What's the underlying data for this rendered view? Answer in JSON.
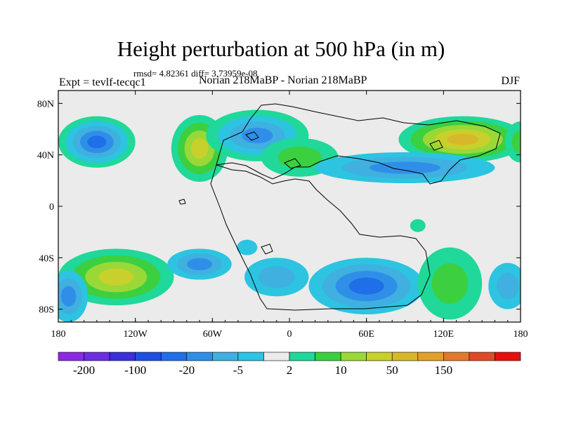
{
  "title": "Height perturbation at 500 hPa (in m)",
  "subtitle": "rmsd= 4.82361 diff= 3.73959e-08",
  "left_label": "Expt = tevlf-tecqc1",
  "center_label": "Norian 218MaBP - Norian 218MaBP",
  "right_label": "DJF",
  "axes": {
    "x_ticks": [
      {
        "value": -180,
        "label": "180"
      },
      {
        "value": -120,
        "label": "120W"
      },
      {
        "value": -60,
        "label": "60W"
      },
      {
        "value": 0,
        "label": "0"
      },
      {
        "value": 60,
        "label": "60E"
      },
      {
        "value": 120,
        "label": "120E"
      },
      {
        "value": 180,
        "label": "180"
      }
    ],
    "y_ticks": [
      {
        "value": 80,
        "label": "80N"
      },
      {
        "value": 40,
        "label": "40N"
      },
      {
        "value": 0,
        "label": "0"
      },
      {
        "value": -40,
        "label": "40S"
      },
      {
        "value": -80,
        "label": "80S"
      }
    ],
    "lon_range": [
      -180,
      180
    ],
    "lat_range": [
      -90,
      90
    ]
  },
  "colorbar": {
    "colors": [
      "#8a2be2",
      "#6a2fe0",
      "#3a2fd8",
      "#1f4fe0",
      "#1f6fe8",
      "#2f8fe8",
      "#3fb0e0",
      "#2cc4e0",
      "#ebebeb",
      "#1fd89a",
      "#3cd040",
      "#9ad838",
      "#c8d02c",
      "#d8b82a",
      "#e0a02a",
      "#e07a2c",
      "#e04a2a",
      "#e61010"
    ],
    "labels": [
      {
        "index": 1,
        "text": "-200"
      },
      {
        "index": 3,
        "text": "-100"
      },
      {
        "index": 5,
        "text": "-20"
      },
      {
        "index": 7,
        "text": "-5"
      },
      {
        "index": 9,
        "text": "2"
      },
      {
        "index": 11,
        "text": "10"
      },
      {
        "index": 13,
        "text": "50"
      },
      {
        "index": 15,
        "text": "150"
      }
    ]
  },
  "field": {
    "background": "#ebebeb",
    "features": [
      {
        "lon": -150,
        "lat": 50,
        "rx": 30,
        "ry": 20,
        "colors": [
          "#1fd89a",
          "#2cc4e0",
          "#3fb0e0",
          "#2f8fe8",
          "#1f6fe8"
        ]
      },
      {
        "lon": -70,
        "lat": 45,
        "rx": 22,
        "ry": 26,
        "colors": [
          "#1fd89a",
          "#3cd040",
          "#9ad838",
          "#c8d02c"
        ]
      },
      {
        "lon": -25,
        "lat": 55,
        "rx": 40,
        "ry": 20,
        "colors": [
          "#1fd89a",
          "#2cc4e0",
          "#3fb0e0",
          "#2f8fe8"
        ]
      },
      {
        "lon": 8,
        "lat": 38,
        "rx": 30,
        "ry": 15,
        "colors": [
          "#1fd89a",
          "#3cd040"
        ]
      },
      {
        "lon": 135,
        "lat": 52,
        "rx": 50,
        "ry": 18,
        "colors": [
          "#1fd89a",
          "#3cd040",
          "#9ad838",
          "#c8d02c",
          "#d8b82a"
        ]
      },
      {
        "lon": 90,
        "lat": 30,
        "rx": 70,
        "ry": 12,
        "colors": [
          "#2cc4e0",
          "#3fb0e0",
          "#2f8fe8"
        ]
      },
      {
        "lon": 180,
        "lat": 50,
        "rx": 12,
        "ry": 16,
        "colors": [
          "#1fd89a",
          "#3cd040"
        ]
      },
      {
        "lon": -135,
        "lat": -55,
        "rx": 45,
        "ry": 22,
        "colors": [
          "#1fd89a",
          "#3cd040",
          "#9ad838",
          "#c8d02c"
        ]
      },
      {
        "lon": -70,
        "lat": -45,
        "rx": 25,
        "ry": 12,
        "colors": [
          "#2cc4e0",
          "#3fb0e0",
          "#2f8fe8"
        ]
      },
      {
        "lon": -10,
        "lat": -55,
        "rx": 25,
        "ry": 15,
        "colors": [
          "#2cc4e0",
          "#3fb0e0"
        ]
      },
      {
        "lon": 60,
        "lat": -62,
        "rx": 45,
        "ry": 22,
        "colors": [
          "#2cc4e0",
          "#3fb0e0",
          "#2f8fe8",
          "#1f6fe8"
        ]
      },
      {
        "lon": 125,
        "lat": -60,
        "rx": 25,
        "ry": 28,
        "colors": [
          "#1fd89a",
          "#3cd040"
        ]
      },
      {
        "lon": 170,
        "lat": -62,
        "rx": 15,
        "ry": 18,
        "colors": [
          "#2cc4e0",
          "#3fb0e0"
        ]
      },
      {
        "lon": -172,
        "lat": -70,
        "rx": 15,
        "ry": 20,
        "colors": [
          "#2cc4e0",
          "#3fb0e0",
          "#2f8fe8"
        ]
      },
      {
        "lon": -33,
        "lat": -32,
        "rx": 8,
        "ry": 6,
        "colors": [
          "#2cc4e0"
        ]
      },
      {
        "lon": 100,
        "lat": -15,
        "rx": 6,
        "ry": 5,
        "colors": [
          "#1fd89a"
        ]
      }
    ]
  }
}
